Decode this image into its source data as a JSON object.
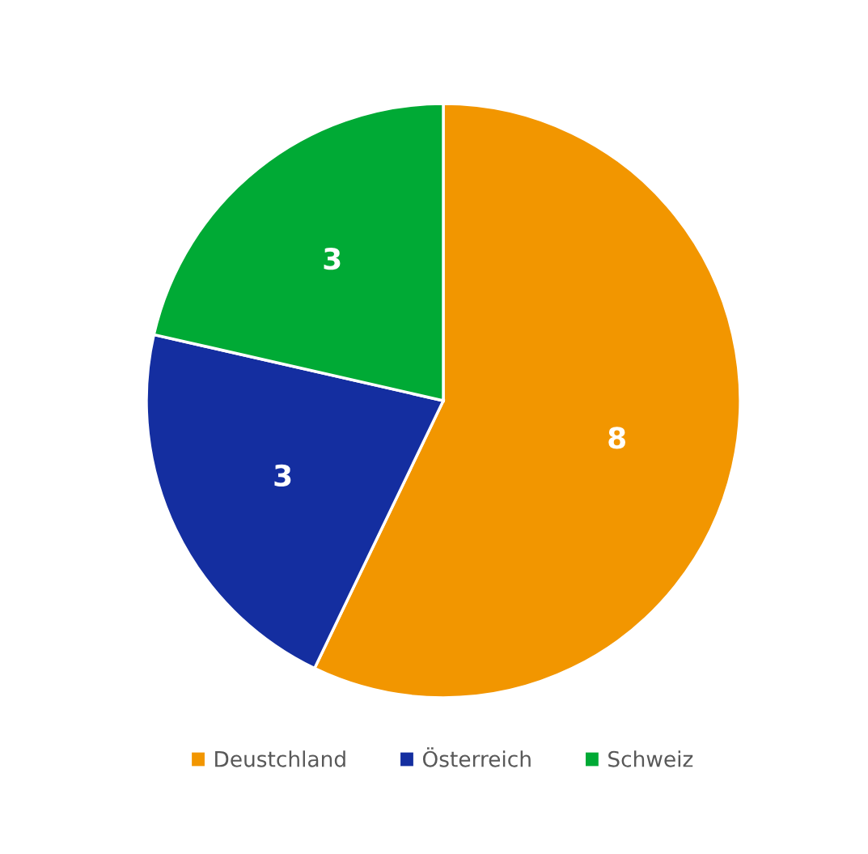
{
  "chart_data": {
    "type": "pie",
    "categories": [
      "Deustchland",
      "Österreich",
      "Schweiz"
    ],
    "values": [
      8,
      3,
      3
    ],
    "colors": [
      "#f29600",
      "#142ea0",
      "#00aa35"
    ],
    "data_labels": true,
    "legend": "bottom"
  }
}
